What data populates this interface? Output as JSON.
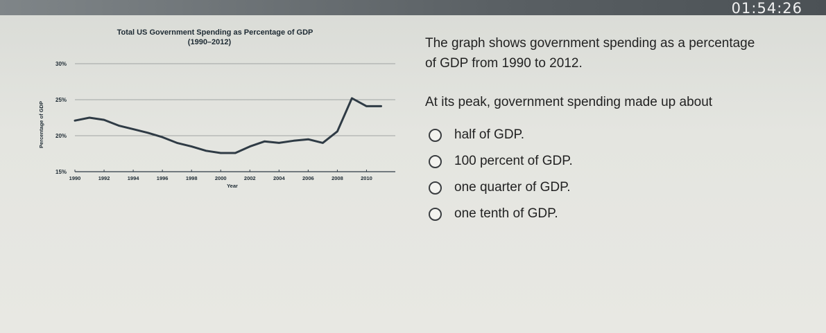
{
  "timer": "01:54:26",
  "question": {
    "line1": "The graph shows government spending as a percentage",
    "line2": "of GDP from 1990 to 2012.",
    "prompt": "At its peak, government spending made up about",
    "options": [
      "half of GDP.",
      "100 percent of GDP.",
      "one quarter of GDP.",
      "one tenth of GDP."
    ]
  },
  "chart_data": {
    "type": "line",
    "title": "Total US Government Spending as Percentage of GDP",
    "subtitle": "(1990–2012)",
    "xlabel": "Year",
    "ylabel": "Percentage of GDP",
    "xlim": [
      1990,
      2011.5
    ],
    "ylim": [
      15,
      30
    ],
    "xticks": [
      "1990",
      "1992",
      "1994",
      "1996",
      "1998",
      "2000",
      "2002",
      "2004",
      "2006",
      "2008",
      "2010"
    ],
    "yticks": [
      "15%",
      "20%",
      "25%",
      "30%"
    ],
    "grid": true,
    "series": [
      {
        "x": [
          1990,
          1991,
          1992,
          1993,
          1994,
          1995,
          1996,
          1997,
          1998,
          1999,
          2000,
          2001,
          2002,
          2003,
          2004,
          2005,
          2006,
          2007,
          2008,
          2009,
          2010,
          2011
        ],
        "values": [
          22.1,
          22.5,
          22.2,
          21.4,
          20.9,
          20.4,
          19.8,
          19.0,
          18.5,
          17.9,
          17.6,
          17.6,
          18.5,
          19.2,
          19.0,
          19.3,
          19.5,
          19.0,
          20.6,
          25.2,
          24.1,
          24.1
        ]
      }
    ],
    "line_color": "#2f3b45"
  }
}
